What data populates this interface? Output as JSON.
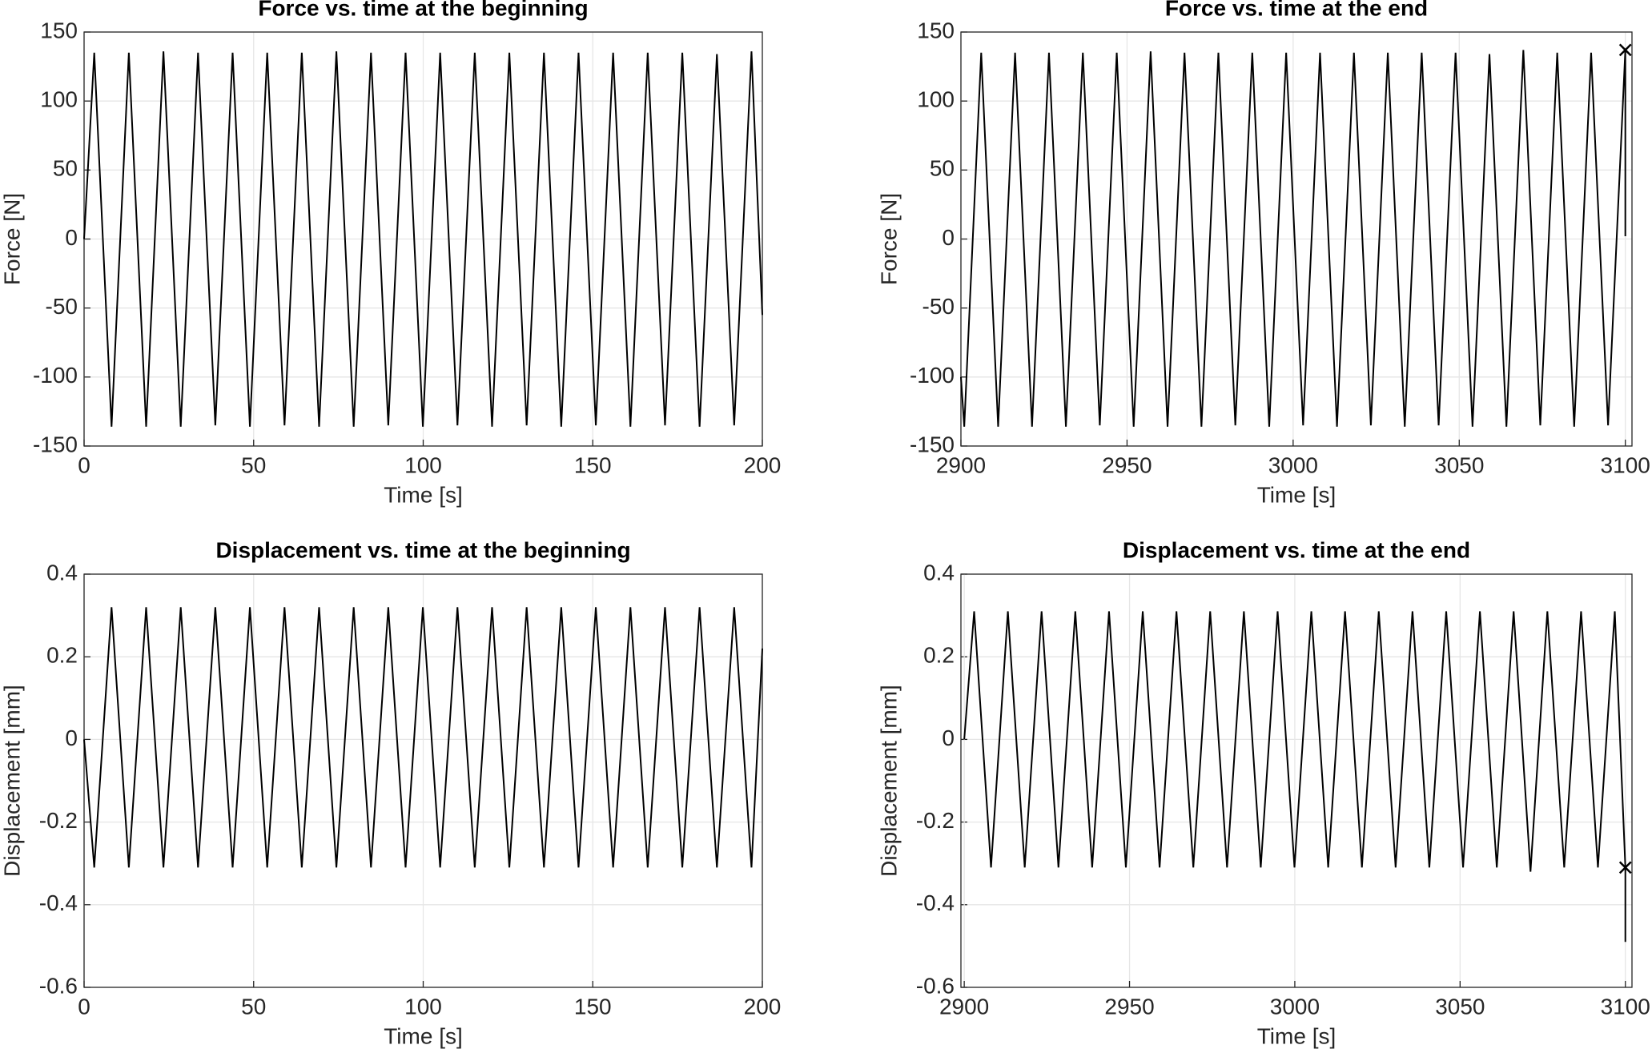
{
  "chart_data": [
    {
      "type": "line",
      "title": "Force vs. time at the beginning",
      "xlabel": "Time [s]",
      "ylabel": "Force [N]",
      "color": "#000000",
      "grid": true,
      "xlim": [
        0,
        200
      ],
      "xticks": [
        0,
        50,
        100,
        150,
        200
      ],
      "ylim": [
        -150,
        150
      ],
      "yticks": [
        -150,
        -100,
        -50,
        0,
        50,
        100,
        150
      ],
      "x": [
        0,
        3,
        8.1,
        13.2,
        18.3,
        23.4,
        28.5,
        33.6,
        38.7,
        43.8,
        48.9,
        54,
        59.1,
        64.2,
        69.3,
        74.4,
        79.5,
        84.6,
        89.7,
        94.8,
        99.9,
        105,
        110.1,
        115.2,
        120.3,
        125.4,
        130.5,
        135.6,
        140.7,
        145.8,
        150.9,
        156,
        161.1,
        166.2,
        171.3,
        176.4,
        181.5,
        186.6,
        191.7,
        196.8,
        200
      ],
      "values": [
        0,
        135,
        -136,
        135,
        -136,
        136,
        -136,
        135,
        -135,
        135,
        -136,
        135,
        -135,
        135,
        -136,
        136,
        -136,
        135,
        -135,
        135,
        -136,
        135,
        -135,
        135,
        -136,
        135,
        -135,
        135,
        -136,
        135,
        -135,
        135,
        -136,
        135,
        -135,
        135,
        -136,
        134,
        -135,
        136,
        -55
      ]
    },
    {
      "type": "line",
      "title": "Force vs. time at the end",
      "xlabel": "Time [s]",
      "ylabel": "Force [N]",
      "color": "#000000",
      "grid": true,
      "xlim": [
        2900,
        3102
      ],
      "xticks": [
        2900,
        2950,
        3000,
        3050,
        3100
      ],
      "ylim": [
        -150,
        150
      ],
      "yticks": [
        -150,
        -100,
        -50,
        0,
        50,
        100,
        150
      ],
      "x": [
        2900,
        2901,
        2906.1,
        2911.2,
        2916.3,
        2921.4,
        2926.5,
        2931.6,
        2936.7,
        2941.8,
        2946.9,
        2952,
        2957.1,
        2962.2,
        2967.3,
        2972.4,
        2977.5,
        2982.6,
        2987.7,
        2992.8,
        2997.9,
        3003,
        3008.1,
        3013.2,
        3018.3,
        3023.4,
        3028.5,
        3033.6,
        3038.7,
        3043.8,
        3048.9,
        3054,
        3059.1,
        3064.2,
        3069.3,
        3074.4,
        3079.5,
        3084.6,
        3089.7,
        3094.8,
        3100,
        3100
      ],
      "values": [
        -100,
        -136,
        135,
        -136,
        135,
        -136,
        135,
        -136,
        135,
        -135,
        135,
        -136,
        136,
        -136,
        135,
        -136,
        135,
        -135,
        135,
        -136,
        135,
        -135,
        135,
        -136,
        135,
        -135,
        135,
        -136,
        135,
        -135,
        135,
        -136,
        134,
        -136,
        137,
        -135,
        135,
        -136,
        135,
        -135,
        137,
        2
      ],
      "marker": {
        "x": 3100,
        "value": 137
      }
    },
    {
      "type": "line",
      "title": "Displacement vs. time at the beginning",
      "xlabel": "Time [s]",
      "ylabel": "Displacement [mm]",
      "color": "#000000",
      "grid": true,
      "xlim": [
        0,
        200
      ],
      "xticks": [
        0,
        50,
        100,
        150,
        200
      ],
      "ylim": [
        -0.6,
        0.4
      ],
      "yticks": [
        -0.6,
        -0.4,
        -0.2,
        0,
        0.2,
        0.4
      ],
      "x": [
        0,
        3,
        8.1,
        13.2,
        18.3,
        23.4,
        28.5,
        33.6,
        38.7,
        43.8,
        48.9,
        54,
        59.1,
        64.2,
        69.3,
        74.4,
        79.5,
        84.6,
        89.7,
        94.8,
        99.9,
        105,
        110.1,
        115.2,
        120.3,
        125.4,
        130.5,
        135.6,
        140.7,
        145.8,
        150.9,
        156,
        161.1,
        166.2,
        171.3,
        176.4,
        181.5,
        186.6,
        191.7,
        196.8,
        200
      ],
      "values": [
        0,
        -0.31,
        0.32,
        -0.31,
        0.32,
        -0.31,
        0.32,
        -0.31,
        0.32,
        -0.31,
        0.32,
        -0.31,
        0.32,
        -0.31,
        0.32,
        -0.31,
        0.32,
        -0.31,
        0.32,
        -0.31,
        0.32,
        -0.31,
        0.32,
        -0.31,
        0.32,
        -0.31,
        0.32,
        -0.31,
        0.32,
        -0.31,
        0.32,
        -0.31,
        0.32,
        -0.31,
        0.32,
        -0.31,
        0.32,
        -0.31,
        0.32,
        -0.31,
        0.22
      ]
    },
    {
      "type": "line",
      "title": "Displacement vs. time at the end",
      "xlabel": "Time [s]",
      "ylabel": "Displacement [mm]",
      "color": "#000000",
      "grid": true,
      "xlim": [
        2899,
        3102
      ],
      "xticks": [
        2900,
        2950,
        3000,
        3050,
        3100
      ],
      "ylim": [
        -0.6,
        0.4
      ],
      "yticks": [
        -0.6,
        -0.4,
        -0.2,
        0,
        0.2,
        0.4
      ],
      "x": [
        2900,
        2903,
        2908.1,
        2913.2,
        2918.3,
        2923.4,
        2928.5,
        2933.6,
        2938.7,
        2943.8,
        2948.9,
        2954,
        2959.1,
        2964.2,
        2969.3,
        2974.4,
        2979.5,
        2984.6,
        2989.7,
        2994.8,
        2999.9,
        3005,
        3010.1,
        3015.2,
        3020.3,
        3025.4,
        3030.5,
        3035.6,
        3040.7,
        3045.8,
        3050.9,
        3056,
        3061.1,
        3066.2,
        3071.3,
        3076.4,
        3081.5,
        3086.6,
        3091.7,
        3096.8,
        3100,
        3100
      ],
      "values": [
        0,
        0.31,
        -0.31,
        0.31,
        -0.31,
        0.31,
        -0.31,
        0.31,
        -0.31,
        0.31,
        -0.31,
        0.31,
        -0.31,
        0.31,
        -0.31,
        0.31,
        -0.31,
        0.31,
        -0.31,
        0.31,
        -0.31,
        0.31,
        -0.31,
        0.31,
        -0.31,
        0.31,
        -0.31,
        0.31,
        -0.31,
        0.31,
        -0.31,
        0.31,
        -0.31,
        0.31,
        -0.32,
        0.31,
        -0.31,
        0.31,
        -0.31,
        0.31,
        -0.31,
        -0.49
      ],
      "marker": {
        "x": 3100,
        "value": -0.31
      }
    }
  ]
}
